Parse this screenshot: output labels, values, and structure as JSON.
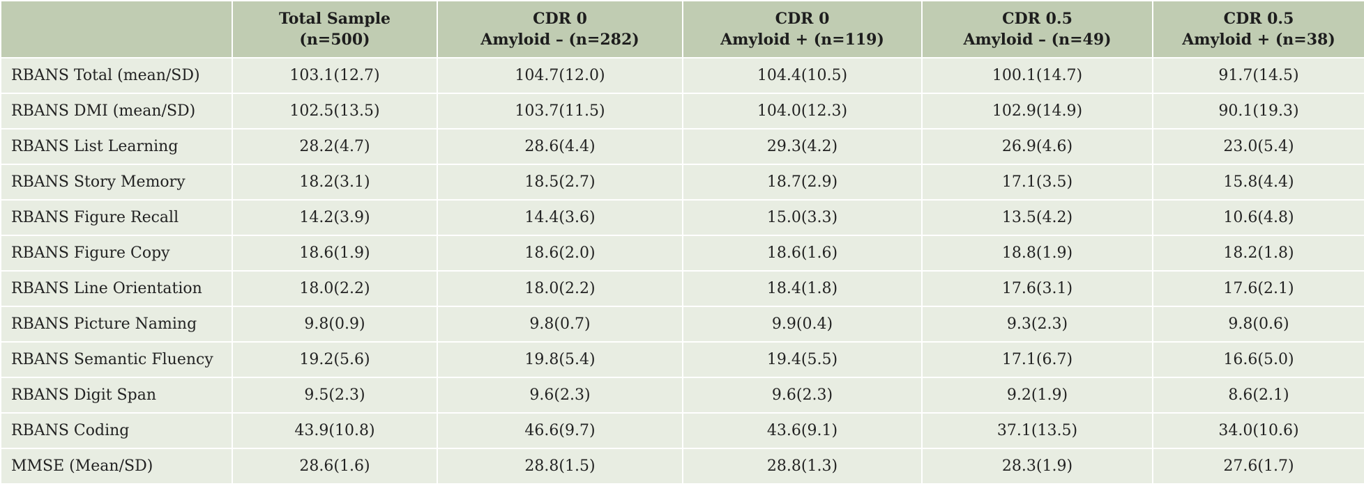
{
  "table": {
    "header": [
      {
        "line1": "",
        "line2": ""
      },
      {
        "line1": "Total Sample",
        "line2": "(n=500)"
      },
      {
        "line1": "CDR 0",
        "line2": "Amyloid – (n=282)"
      },
      {
        "line1": "CDR 0",
        "line2": "Amyloid + (n=119)"
      },
      {
        "line1": "CDR 0.5",
        "line2": "Amyloid – (n=49)"
      },
      {
        "line1": "CDR 0.5",
        "line2": "Amyloid + (n=38)"
      }
    ],
    "rows": [
      [
        "RBANS Total (mean/SD)",
        "103.1(12.7)",
        "104.7(12.0)",
        "104.4(10.5)",
        "100.1(14.7)",
        "91.7(14.5)"
      ],
      [
        "RBANS DMI (mean/SD)",
        "102.5(13.5)",
        "103.7(11.5)",
        "104.0(12.3)",
        "102.9(14.9)",
        "90.1(19.3)"
      ],
      [
        "RBANS List Learning",
        "28.2(4.7)",
        "28.6(4.4)",
        "29.3(4.2)",
        "26.9(4.6)",
        "23.0(5.4)"
      ],
      [
        "RBANS Story Memory",
        "18.2(3.1)",
        "18.5(2.7)",
        "18.7(2.9)",
        "17.1(3.5)",
        "15.8(4.4)"
      ],
      [
        "RBANS Figure Recall",
        "14.2(3.9)",
        "14.4(3.6)",
        "15.0(3.3)",
        "13.5(4.2)",
        "10.6(4.8)"
      ],
      [
        "RBANS Figure Copy",
        "18.6(1.9)",
        "18.6(2.0)",
        "18.6(1.6)",
        "18.8(1.9)",
        "18.2(1.8)"
      ],
      [
        "RBANS Line Orientation",
        "18.0(2.2)",
        "18.0(2.2)",
        "18.4(1.8)",
        "17.6(3.1)",
        "17.6(2.1)"
      ],
      [
        "RBANS Picture Naming",
        "9.8(0.9)",
        "9.8(0.7)",
        "9.9(0.4)",
        "9.3(2.3)",
        "9.8(0.6)"
      ],
      [
        "RBANS Semantic Fluency",
        "19.2(5.6)",
        "19.8(5.4)",
        "19.4(5.5)",
        "17.1(6.7)",
        "16.6(5.0)"
      ],
      [
        "RBANS Digit Span",
        "9.5(2.3)",
        "9.6(2.3)",
        "9.6(2.3)",
        "9.2(1.9)",
        "8.6(2.1)"
      ],
      [
        "RBANS Coding",
        "43.9(10.8)",
        "46.6(9.7)",
        "43.6(9.1)",
        "37.1(13.5)",
        "34.0(10.6)"
      ],
      [
        "MMSE (Mean/SD)",
        "28.6(1.6)",
        "28.8(1.5)",
        "28.8(1.3)",
        "28.3(1.9)",
        "27.6(1.7)"
      ]
    ]
  },
  "colors": {
    "header_bg": "#c0ccb2",
    "body_bg": "#e8ede2",
    "border": "#ffffff",
    "outer_border": "#2a2a2a"
  }
}
